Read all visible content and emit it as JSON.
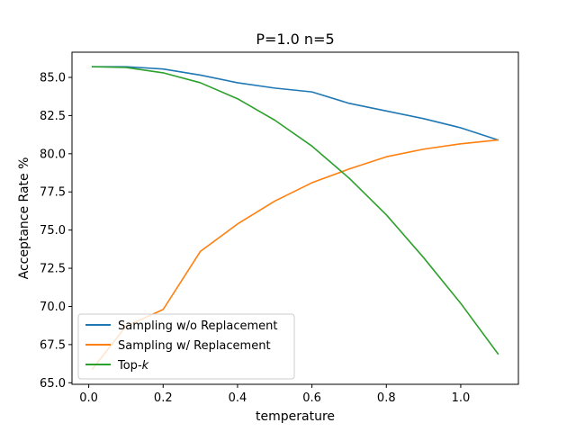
{
  "chart_data": {
    "type": "line",
    "title": "P=1.0 n=5",
    "xlabel": "temperature",
    "ylabel": "Acceptance Rate %",
    "xlim": [
      -0.045,
      1.155
    ],
    "ylim": [
      64.9,
      86.65
    ],
    "xticks": [
      0.0,
      0.2,
      0.4,
      0.6,
      0.8,
      1.0
    ],
    "xtick_labels": [
      "0.0",
      "0.2",
      "0.4",
      "0.6",
      "0.8",
      "1.0"
    ],
    "yticks": [
      65.0,
      67.5,
      70.0,
      72.5,
      75.0,
      77.5,
      80.0,
      82.5,
      85.0
    ],
    "ytick_labels": [
      "65.0",
      "67.5",
      "70.0",
      "72.5",
      "75.0",
      "77.5",
      "80.0",
      "82.5",
      "85.0"
    ],
    "grid": false,
    "legend_position": "lower-left",
    "x": [
      0.01,
      0.1,
      0.2,
      0.3,
      0.4,
      0.5,
      0.6,
      0.7,
      0.8,
      0.9,
      1.0,
      1.1
    ],
    "series": [
      {
        "name": "Sampling w/o Replacement",
        "color": "#1f77b4",
        "values": [
          85.7,
          85.7,
          85.55,
          85.15,
          84.65,
          84.3,
          84.05,
          83.3,
          82.8,
          82.3,
          81.7,
          80.9
        ]
      },
      {
        "name": "Sampling w/ Replacement",
        "color": "#ff7f0e",
        "values": [
          65.9,
          68.7,
          69.8,
          73.6,
          75.4,
          76.9,
          78.1,
          79.0,
          79.8,
          80.3,
          80.65,
          80.9
        ]
      },
      {
        "name_prefix": "Top-",
        "name_italic": "k",
        "color": "#2ca02c",
        "values": [
          85.7,
          85.65,
          85.3,
          84.65,
          83.6,
          82.2,
          80.5,
          78.4,
          76.0,
          73.2,
          70.2,
          66.9
        ]
      }
    ]
  }
}
